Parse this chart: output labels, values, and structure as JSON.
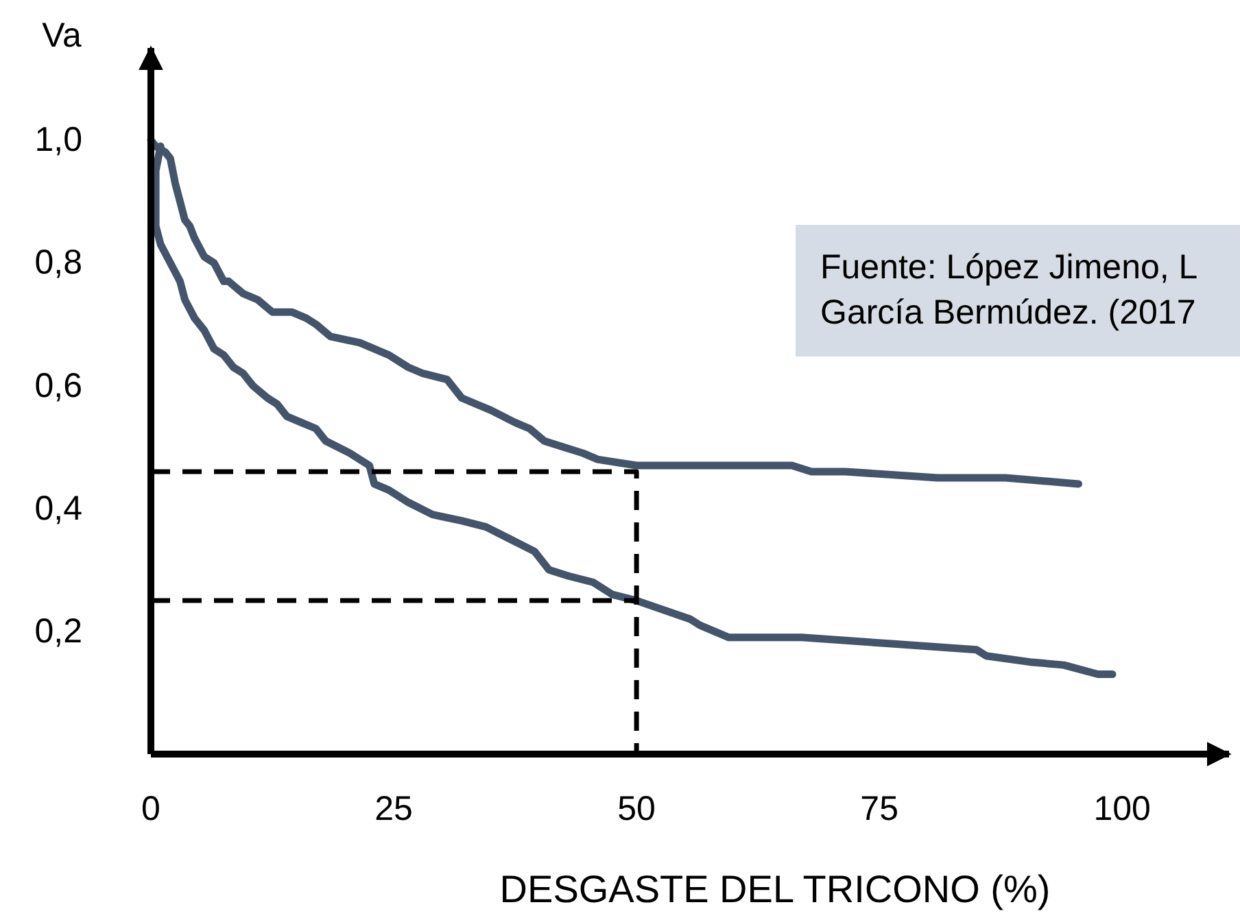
{
  "chart_data": {
    "type": "line",
    "xlabel": "DESGASTE DEL TRICONO (%)",
    "ylabel": "Va",
    "annotations": [
      "Fuente: López Jimeno, L\nGarcía Bermúdez. (2017"
    ],
    "xlim": [
      0,
      111
    ],
    "ylim": [
      0,
      1.15
    ],
    "xticks": [
      0,
      25,
      50,
      75,
      100
    ],
    "yticks": [
      {
        "value": 0.2,
        "label": "0,2"
      },
      {
        "value": 0.4,
        "label": "0,4"
      },
      {
        "value": 0.6,
        "label": "0,6"
      },
      {
        "value": 0.8,
        "label": "0,8"
      },
      {
        "value": 1,
        "label": "1,0"
      }
    ],
    "series": [
      {
        "color": "#44546a",
        "line_style": "solid",
        "x": [
          0,
          0.5,
          1.5,
          2,
          2.5,
          3.5,
          4,
          4.5,
          5.5,
          6.5,
          7.5,
          8,
          9.5,
          11,
          12.5,
          14.5,
          16,
          17,
          18.5,
          21.5,
          24.5,
          26.5,
          28,
          30.5,
          32,
          33.5,
          35,
          37.5,
          39,
          40.5,
          42.5,
          44.5,
          46,
          50,
          62,
          66,
          68,
          71.5,
          81,
          88,
          95.5
        ],
        "values": [
          1.0,
          0.99,
          0.98,
          0.97,
          0.93,
          0.87,
          0.86,
          0.84,
          0.81,
          0.8,
          0.77,
          0.77,
          0.75,
          0.74,
          0.72,
          0.72,
          0.71,
          0.7,
          0.68,
          0.67,
          0.65,
          0.63,
          0.62,
          0.61,
          0.58,
          0.57,
          0.56,
          0.54,
          0.53,
          0.51,
          0.5,
          0.49,
          0.48,
          0.47,
          0.47,
          0.47,
          0.46,
          0.46,
          0.45,
          0.45,
          0.44
        ]
      },
      {
        "color": "#44546a",
        "line_style": "solid",
        "x": [
          1,
          0.5,
          0.5,
          0.5,
          1,
          2,
          3,
          3.5,
          4.5,
          5.5,
          6.5,
          7.5,
          8.5,
          9.5,
          10.5,
          12,
          13,
          14,
          15.5,
          17,
          18,
          20.5,
          22.5,
          23,
          24.5,
          26.5,
          29,
          32,
          34.5,
          37,
          39.5,
          41,
          43,
          45.5,
          47.5,
          50,
          55.5,
          56.5,
          58,
          59.5,
          67,
          76,
          85,
          86,
          90.5,
          94,
          97.5,
          99
        ],
        "values": [
          0.99,
          0.95,
          0.9,
          0.86,
          0.83,
          0.8,
          0.77,
          0.74,
          0.71,
          0.69,
          0.66,
          0.65,
          0.63,
          0.62,
          0.6,
          0.58,
          0.57,
          0.55,
          0.54,
          0.53,
          0.51,
          0.49,
          0.47,
          0.44,
          0.43,
          0.41,
          0.39,
          0.38,
          0.37,
          0.35,
          0.33,
          0.3,
          0.29,
          0.28,
          0.26,
          0.25,
          0.22,
          0.21,
          0.2,
          0.19,
          0.19,
          0.18,
          0.17,
          0.16,
          0.15,
          0.145,
          0.13,
          0.13
        ]
      },
      {
        "color": "#000000",
        "line_style": "dashed",
        "x": [
          0,
          50,
          50
        ],
        "values": [
          0.46,
          0.46,
          0
        ]
      },
      {
        "color": "#000000",
        "line_style": "dashed",
        "x": [
          0,
          50
        ],
        "values": [
          0.25,
          0.25
        ]
      }
    ]
  }
}
